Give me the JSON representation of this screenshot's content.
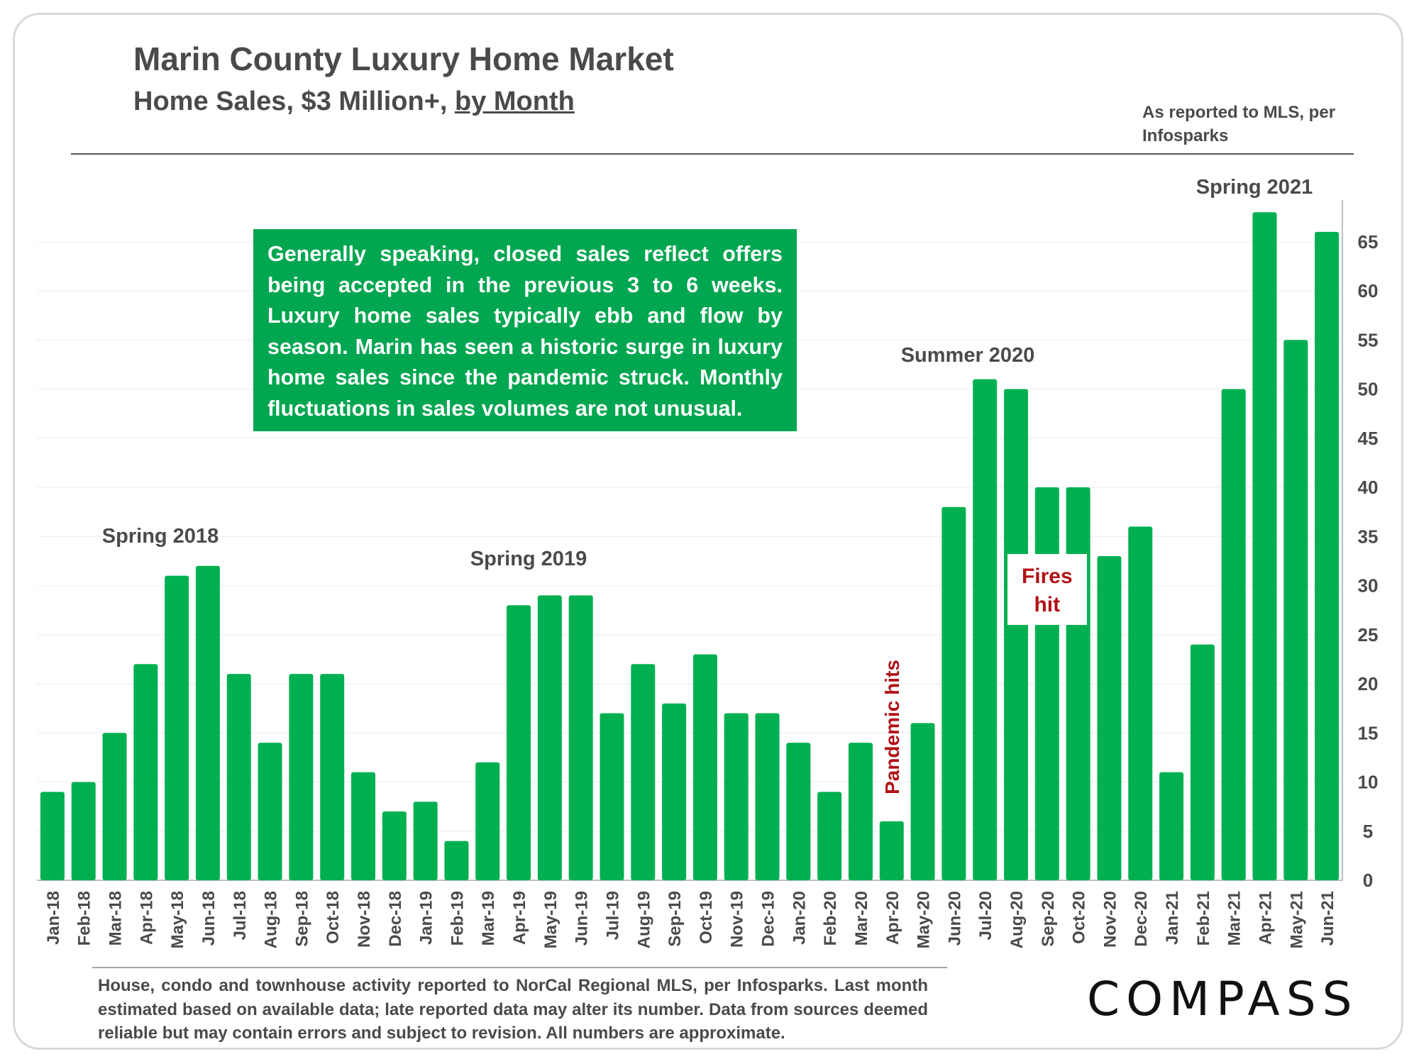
{
  "header": {
    "title": "Marin County Luxury Home Market",
    "subtitle_main": "Home Sales, $3 Million+, ",
    "subtitle_underlined": "by Month",
    "source_note": "As reported to MLS, per Infosparks"
  },
  "callout": {
    "text": "Generally speaking, closed sales reflect offers being accepted in the previous 3 to 6 weeks. Luxury home sales typically ebb and flow by season. Marin has seen a historic surge in luxury home sales since the pandemic struck. Monthly fluctuations in sales volumes are not unusual."
  },
  "footer": {
    "note": "House, condo and townhouse activity reported to NorCal Regional MLS, per Infosparks. Last month estimated based on available data; late reported data may alter its number. Data from sources deemed reliable but may contain errors and subject to revision. All numbers are approximate.",
    "logo": "COMPASS"
  },
  "colors": {
    "bar": "#00b050",
    "callout_bg": "#00a650",
    "annotation_red": "#b11116",
    "text": "#4a4a4a",
    "grid": "#f2f2f2"
  },
  "chart_data": {
    "type": "bar",
    "categories": [
      "Jan-18",
      "Feb-18",
      "Mar-18",
      "Apr-18",
      "May-18",
      "Jun-18",
      "Jul-18",
      "Aug-18",
      "Sep-18",
      "Oct-18",
      "Nov-18",
      "Dec-18",
      "Jan-19",
      "Feb-19",
      "Mar-19",
      "Apr-19",
      "May-19",
      "Jun-19",
      "Jul-19",
      "Aug-19",
      "Sep-19",
      "Oct-19",
      "Nov-19",
      "Dec-19",
      "Jan-20",
      "Feb-20",
      "Mar-20",
      "Apr-20",
      "May-20",
      "Jun-20",
      "Jul-20",
      "Aug-20",
      "Sep-20",
      "Oct-20",
      "Nov-20",
      "Dec-20",
      "Jan-21",
      "Feb-21",
      "Mar-21",
      "Apr-21",
      "May-21",
      "Jun-21"
    ],
    "values": [
      9,
      10,
      15,
      22,
      31,
      32,
      21,
      14,
      21,
      21,
      11,
      7,
      8,
      4,
      12,
      28,
      29,
      29,
      17,
      22,
      18,
      23,
      17,
      17,
      14,
      9,
      14,
      6,
      16,
      38,
      51,
      50,
      40,
      40,
      33,
      36,
      11,
      24,
      50,
      68,
      55,
      66
    ],
    "ylim": [
      0,
      68
    ],
    "yticks": [
      0,
      5,
      10,
      15,
      20,
      25,
      30,
      35,
      40,
      45,
      50,
      55,
      60,
      65
    ],
    "y_axis_side": "right",
    "grid": true,
    "annotations": [
      {
        "text": "Spring 2018",
        "at": "May-18"
      },
      {
        "text": "Spring 2019",
        "at": "May-19"
      },
      {
        "text": "Summer 2020",
        "at": "Aug-20"
      },
      {
        "text": "Spring 2021",
        "at": "Apr-21"
      },
      {
        "text": "Pandemic hits",
        "at": "Apr-20",
        "rotated": true
      },
      {
        "text": "Fires hit",
        "at": "Sep-20",
        "boxed": true
      }
    ]
  }
}
